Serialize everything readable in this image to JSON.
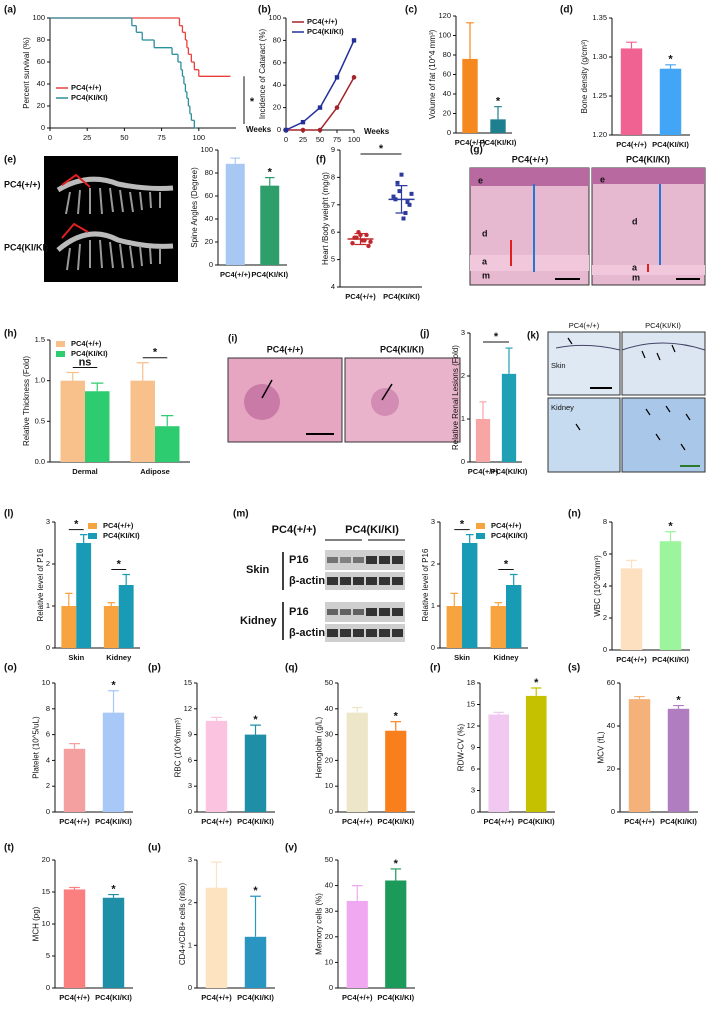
{
  "chart_data": [
    {
      "type": "line",
      "label": "(a)",
      "ylabel": "Percent survival (%)",
      "xlabel": "Weeks",
      "curve": "step",
      "legend": "lower left",
      "xlim": [
        0,
        125
      ],
      "xticks": [
        0,
        25,
        50,
        75,
        100
      ],
      "ylim": [
        0,
        100
      ],
      "yticks": [
        0,
        20,
        40,
        60,
        80,
        100
      ],
      "annotations": [
        "*"
      ],
      "series": [
        {
          "name": "PC4(+/+)",
          "color": "#e8403a",
          "x": [
            0,
            87,
            89,
            91,
            92,
            93,
            95,
            97,
            100,
            120
          ],
          "values": [
            100,
            93,
            87,
            80,
            73,
            67,
            60,
            53,
            47,
            47
          ]
        },
        {
          "name": "PC4(KI/KI)",
          "color": "#2c8f9e",
          "x": [
            0,
            55,
            58,
            62,
            70,
            82,
            86,
            88,
            89,
            90,
            91,
            92,
            93,
            94,
            95,
            97
          ],
          "values": [
            100,
            93,
            87,
            80,
            73,
            67,
            60,
            53,
            47,
            40,
            33,
            27,
            20,
            13,
            7,
            0
          ]
        }
      ]
    },
    {
      "type": "line",
      "label": "(b)",
      "ylabel": "Incidence of Cataract (%)",
      "xlabel": "Weeks",
      "legend": "upper left",
      "xlim": [
        0,
        100
      ],
      "xticks": [
        0,
        25,
        50,
        75,
        100
      ],
      "ylim": [
        0,
        100
      ],
      "yticks": [
        0,
        20,
        40,
        60,
        80,
        100
      ],
      "series": [
        {
          "name": "PC4(+/+)",
          "color": "#a3232a",
          "marker": "circle",
          "x": [
            0,
            25,
            50,
            75,
            100
          ],
          "values": [
            0,
            0,
            0,
            20,
            47
          ]
        },
        {
          "name": "PC4(KI/KI)",
          "color": "#24309a",
          "marker": "square",
          "x": [
            0,
            25,
            50,
            75,
            100
          ],
          "values": [
            0,
            7,
            20,
            47,
            80
          ]
        }
      ]
    },
    {
      "type": "bar",
      "label": "(c)",
      "ylabel": "Volume of fat (10^4 mm³)",
      "categories": [
        "PC4(+/+)",
        "PC4(KI/KI)"
      ],
      "values": [
        76,
        14
      ],
      "errors": [
        37,
        13
      ],
      "colors": [
        "#f5891f",
        "#1e7f8e"
      ],
      "ylim": [
        0,
        120
      ],
      "yticks": [
        0,
        20,
        40,
        60,
        80,
        100,
        120
      ],
      "annotations": [
        "*"
      ]
    },
    {
      "type": "bar",
      "label": "(d)",
      "ylabel": "Bone density (g/cm³)",
      "categories": [
        "PC4(+/+)",
        "PC4(KI/KI)"
      ],
      "values": [
        1.311,
        1.285
      ],
      "errors": [
        0.008,
        0.005
      ],
      "colors": [
        "#f06292",
        "#42a5f5"
      ],
      "ylim": [
        1.2,
        1.35
      ],
      "yticks": [
        {
          "value": 1.2,
          "label": "1.20"
        },
        1.25,
        {
          "value": 1.3,
          "label": "1.30"
        },
        1.35
      ],
      "annotations": [
        "*"
      ]
    },
    {
      "type": "bar",
      "label": "(e)",
      "ylabel": "Spine Angles (Degree)",
      "categories": [
        "PC4(+/+)",
        "PC4(KI/KI)"
      ],
      "values": [
        88,
        69
      ],
      "errors": [
        5,
        7
      ],
      "colors": [
        "#a7c8f2",
        "#2e9e6b"
      ],
      "ylim": [
        0,
        100
      ],
      "yticks": [
        0,
        20,
        40,
        60,
        80,
        100
      ],
      "annotations": [
        "*"
      ]
    },
    {
      "type": "scatter",
      "label": "(f)",
      "ylabel": "Heart /Body weight (mg/g)",
      "categories": [
        "PC4(+/+)",
        "PC4(KI/KI)"
      ],
      "series": [
        {
          "color": "#c0282d",
          "values": [
            5.6,
            5.8,
            5.9,
            5.7,
            5.5,
            5.8,
            6.0,
            5.7,
            5.9,
            5.65
          ]
        },
        {
          "color": "#2b3b9e",
          "values": [
            7.3,
            7.8,
            8.1,
            6.7,
            7.0,
            7.2,
            7.5,
            6.5,
            7.1,
            7.4
          ]
        }
      ],
      "means": [
        5.75,
        7.2
      ],
      "errors": [
        0.2,
        0.5
      ],
      "bracket": true,
      "ylim": [
        4,
        9
      ],
      "yticks": [
        4,
        5,
        6,
        7,
        8,
        9
      ],
      "annotations": [
        "*"
      ]
    },
    {
      "type": "bar",
      "label": "(h)",
      "ylabel": "Relative Thickness (Fold)",
      "legend": "upper left",
      "categories": [
        "Dermal",
        "Adipose"
      ],
      "series": [
        {
          "name": "PC4(+/+)",
          "color": "#f8c08a",
          "values": [
            1.0,
            1.0
          ],
          "errors": [
            0.1,
            0.22
          ]
        },
        {
          "name": "PC4(KI/KI)",
          "color": "#2ecc71",
          "values": [
            0.87,
            0.44
          ],
          "errors": [
            0.1,
            0.13
          ]
        }
      ],
      "ylim": [
        0,
        1.5
      ],
      "yticks": [
        {
          "value": 0,
          "label": "0.0"
        },
        0.5,
        {
          "value": 1,
          "label": "1.0"
        },
        1.5
      ],
      "annotations": [
        "ns",
        "*"
      ]
    },
    {
      "type": "bar",
      "label": "(j)",
      "ylabel": "Relative Renal Lesions (Fold)",
      "categories": [
        "PC4(+/+)",
        "PC4(KI/KI)"
      ],
      "values": [
        1.0,
        2.05
      ],
      "errors": [
        0.4,
        0.6
      ],
      "colors": [
        "#f8a5a5",
        "#1fa0b5"
      ],
      "bracket": true,
      "ylim": [
        0,
        3
      ],
      "yticks": [
        0,
        1,
        2,
        3
      ],
      "annotations": [
        "*"
      ]
    },
    {
      "type": "bar",
      "label": "(l)",
      "ylabel": "Relative level of P16",
      "legend": "upper right",
      "categories": [
        "Skin",
        "Kidney"
      ],
      "series": [
        {
          "name": "PC4(+/+)",
          "color": "#f7a440",
          "values": [
            1.0,
            1.0
          ],
          "errors": [
            0.3,
            0.08
          ]
        },
        {
          "name": "PC4(KI/KI)",
          "color": "#1a9bb5",
          "values": [
            2.5,
            1.5
          ],
          "errors": [
            0.2,
            0.25
          ]
        }
      ],
      "ylim": [
        0,
        3
      ],
      "yticks": [
        0,
        1,
        2,
        3
      ],
      "annotations": [
        "*",
        "*"
      ]
    },
    {
      "type": "bar",
      "label": "(m)",
      "ylabel": "Relative level of P16",
      "legend": "upper right",
      "categories": [
        "Skin",
        "Kidney"
      ],
      "series": [
        {
          "name": "PC4(+/+)",
          "color": "#f7a440",
          "values": [
            1.0,
            1.0
          ],
          "errors": [
            0.3,
            0.08
          ]
        },
        {
          "name": "PC4(KI/KI)",
          "color": "#1a9bb5",
          "values": [
            2.5,
            1.5
          ],
          "errors": [
            0.2,
            0.25
          ]
        }
      ],
      "ylim": [
        0,
        3
      ],
      "yticks": [
        0,
        1,
        2,
        3
      ],
      "annotations": [
        "*",
        "*"
      ]
    },
    {
      "type": "bar",
      "label": "(n)",
      "ylabel": "WBC (10^3/mm³)",
      "categories": [
        "PC4(+/+)",
        "PC4(KI/KI)"
      ],
      "values": [
        5.1,
        6.8
      ],
      "errors": [
        0.5,
        0.6
      ],
      "colors": [
        "#fde0c0",
        "#9cf59c"
      ],
      "ylim": [
        0,
        8
      ],
      "yticks": [
        0,
        2,
        4,
        6,
        8
      ],
      "annotations": [
        "*"
      ]
    },
    {
      "type": "bar",
      "label": "(o)",
      "ylabel": "Platelet (10^5/uL)",
      "categories": [
        "PC4(+/+)",
        "PC4(KI/KI)"
      ],
      "values": [
        4.9,
        7.7
      ],
      "errors": [
        0.4,
        1.7
      ],
      "colors": [
        "#f5a0a0",
        "#a8c8f8"
      ],
      "ylim": [
        0,
        10
      ],
      "yticks": [
        0,
        2,
        4,
        6,
        8,
        10
      ],
      "annotations": [
        "*"
      ]
    },
    {
      "type": "bar",
      "label": "(p)",
      "ylabel": "RBC (10^6/mm³)",
      "categories": [
        "PC4(+/+)",
        "PC4(KI/KI)"
      ],
      "values": [
        10.6,
        9.0
      ],
      "errors": [
        0.4,
        1.1
      ],
      "colors": [
        "#fbc3e0",
        "#1f8fa8"
      ],
      "ylim": [
        0,
        15
      ],
      "yticks": [
        0,
        3,
        6,
        9,
        12,
        15
      ],
      "annotations": [
        "*"
      ]
    },
    {
      "type": "bar",
      "label": "(q)",
      "ylabel": "Hemoglobin (g/L)",
      "categories": [
        "PC4(+/+)",
        "PC4(KI/KI)"
      ],
      "values": [
        38.5,
        31.5
      ],
      "errors": [
        2,
        3.5
      ],
      "colors": [
        "#ede6c8",
        "#f97f1c"
      ],
      "ylim": [
        0,
        50
      ],
      "yticks": [
        0,
        10,
        20,
        30,
        40,
        50
      ],
      "annotations": [
        "*"
      ]
    },
    {
      "type": "bar",
      "label": "(r)",
      "ylabel": "RDW-CV (%)",
      "categories": [
        "PC4(+/+)",
        "PC4(KI/KI)"
      ],
      "values": [
        13.6,
        16.2
      ],
      "errors": [
        0.3,
        1.1
      ],
      "colors": [
        "#f0c8f0",
        "#c5c000"
      ],
      "ylim": [
        0,
        18
      ],
      "yticks": [
        0,
        3,
        6,
        9,
        12,
        15,
        18
      ],
      "annotations": [
        "*"
      ]
    },
    {
      "type": "bar",
      "label": "(s)",
      "ylabel": "MCV (fL)",
      "categories": [
        "PC4(+/+)",
        "PC4(KI/KI)"
      ],
      "values": [
        52.5,
        48
      ],
      "errors": [
        1.2,
        1.5
      ],
      "colors": [
        "#f4b27a",
        "#b07ec0"
      ],
      "ylim": [
        0,
        60
      ],
      "yticks": [
        0,
        20,
        40,
        60
      ],
      "annotations": [
        "*"
      ]
    },
    {
      "type": "bar",
      "label": "(t)",
      "ylabel": "MCH (pg)",
      "categories": [
        "PC4(+/+)",
        "PC4(KI/KI)"
      ],
      "values": [
        15.4,
        14.1
      ],
      "errors": [
        0.3,
        0.5
      ],
      "colors": [
        "#fa8080",
        "#1f8fa8"
      ],
      "ylim": [
        0,
        20
      ],
      "yticks": [
        0,
        5,
        10,
        15,
        20
      ],
      "annotations": [
        "*"
      ]
    },
    {
      "type": "bar",
      "label": "(u)",
      "ylabel": "CD4+/CD8+ cells (ritio)",
      "categories": [
        "PC4(+/+)",
        "PC4(KI/KI)"
      ],
      "values": [
        2.35,
        1.2
      ],
      "errors": [
        0.6,
        0.95
      ],
      "colors": [
        "#fde3c0",
        "#2a95c0"
      ],
      "ylim": [
        0,
        3
      ],
      "yticks": [
        0,
        1,
        2,
        3
      ],
      "annotations": [
        "*"
      ]
    },
    {
      "type": "bar",
      "label": "(v)",
      "ylabel": "Memory cells (%)",
      "categories": [
        "PC4(+/+)",
        "PC4(KI/KI)"
      ],
      "values": [
        34,
        42
      ],
      "errors": [
        6,
        4.5
      ],
      "colors": [
        "#f0a8f0",
        "#1b9a5a"
      ],
      "ylim": [
        0,
        50
      ],
      "yticks": [
        0,
        10,
        20,
        30,
        40,
        50
      ],
      "annotations": [
        "*"
      ]
    }
  ],
  "images": {
    "e": {
      "rows": [
        "PC4(+/+)",
        "PC4(KI/KI)"
      ]
    },
    "g": {
      "label": "(g)",
      "columns": [
        "PC4(+/+)",
        "PC4(KI/KI)"
      ],
      "layers": [
        "e",
        "d",
        "a",
        "m"
      ]
    },
    "i": {
      "label": "(i)",
      "columns": [
        "PC4(+/+)",
        "PC4(KI/KI)"
      ]
    },
    "k": {
      "label": "(k)",
      "columns": [
        "PC4(+/+)",
        "PC4(KI/KI)"
      ],
      "rows": [
        "Skin",
        "Kidney"
      ]
    },
    "m": {
      "groups": [
        "PC4(+/+)",
        "PC4(KI/KI)"
      ],
      "tissues": [
        "Skin",
        "Kidney"
      ],
      "proteins": [
        "P16",
        "β-actin",
        "P16",
        "β-actin"
      ]
    }
  }
}
